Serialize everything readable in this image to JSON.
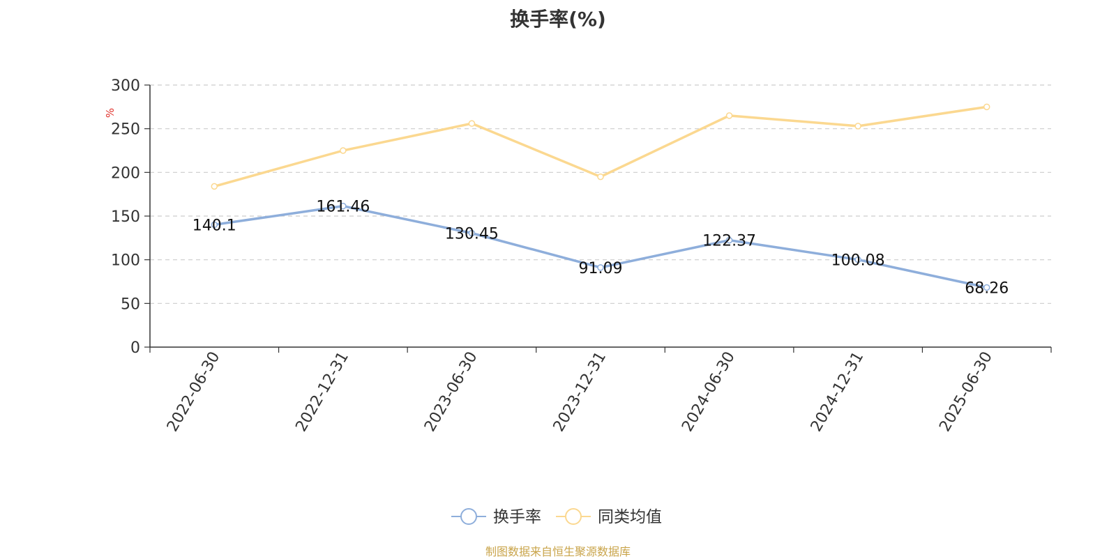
{
  "chart_data": {
    "type": "line",
    "title": "换手率(%)",
    "ylabel": "%",
    "xlabel": "",
    "categories": [
      "2022-06-30",
      "2022-12-31",
      "2023-06-30",
      "2023-12-31",
      "2024-06-30",
      "2024-12-31",
      "2025-06-30"
    ],
    "ylim": [
      0,
      300
    ],
    "yticks": [
      0,
      50,
      100,
      150,
      200,
      250,
      300
    ],
    "grid": true,
    "legend_position": "bottom",
    "series": [
      {
        "name": "换手率",
        "color": "#8eaedb",
        "values": [
          140.1,
          161.46,
          130.45,
          91.09,
          122.37,
          100.08,
          68.26
        ],
        "labels": [
          "140.1",
          "161.46",
          "130.45",
          "91.09",
          "122.37",
          "100.08",
          "68.26"
        ]
      },
      {
        "name": "同类均值",
        "color": "#fbd890",
        "values": [
          184,
          225,
          256,
          195,
          265,
          253,
          275
        ]
      }
    ]
  },
  "source": {
    "text": "制图数据来自恒生聚源数据库",
    "color": "#c9a44a"
  },
  "colors": {
    "ylabel": "#e0312b",
    "axis": "#333333",
    "grid": "#cccccc",
    "text": "#333333"
  }
}
